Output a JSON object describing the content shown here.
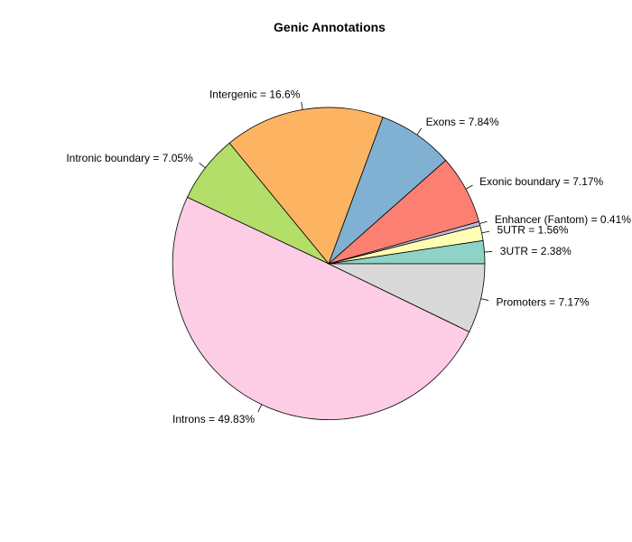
{
  "chart_data": {
    "type": "pie",
    "title": "Genic Annotations",
    "start_angle_deg": 0,
    "direction": "counterclockwise",
    "slices": [
      {
        "name": "3UTR",
        "value": 2.38,
        "color": "#8DD3C7",
        "label": "3UTR = 2.38%"
      },
      {
        "name": "5UTR",
        "value": 1.56,
        "color": "#FFFFB3",
        "label": "5UTR = 1.56%"
      },
      {
        "name": "Enhancer (Fantom)",
        "value": 0.41,
        "color": "#BEBADA",
        "label": "Enhancer (Fantom) = 0.41%"
      },
      {
        "name": "Exonic boundary",
        "value": 7.17,
        "color": "#FB8072",
        "label": "Exonic boundary = 7.17%"
      },
      {
        "name": "Exons",
        "value": 7.84,
        "color": "#80B1D3",
        "label": "Exons = 7.84%"
      },
      {
        "name": "Intergenic",
        "value": 16.6,
        "color": "#FDB462",
        "label": "Intergenic = 16.6%"
      },
      {
        "name": "Intronic boundary",
        "value": 7.05,
        "color": "#B3DE69",
        "label": "Intronic boundary = 7.05%"
      },
      {
        "name": "Introns",
        "value": 49.83,
        "color": "#FCCDE5",
        "label": "Introns = 49.83%"
      },
      {
        "name": "Promoters",
        "value": 7.17,
        "color": "#D9D9D9",
        "label": "Promoters = 7.17%"
      }
    ]
  }
}
